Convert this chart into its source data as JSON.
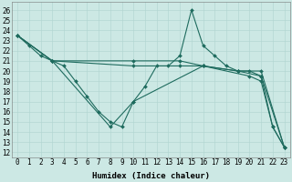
{
  "xlabel": "Humidex (Indice chaleur)",
  "xlim": [
    -0.5,
    23.5
  ],
  "ylim": [
    11.5,
    26.8
  ],
  "yticks": [
    12,
    13,
    14,
    15,
    16,
    17,
    18,
    19,
    20,
    21,
    22,
    23,
    24,
    25,
    26
  ],
  "xticks": [
    0,
    1,
    2,
    3,
    4,
    5,
    6,
    7,
    8,
    9,
    10,
    11,
    12,
    13,
    14,
    15,
    16,
    17,
    18,
    19,
    20,
    21,
    22,
    23
  ],
  "background_color": "#cce8e4",
  "line_color": "#1e6b5e",
  "grid_color": "#afd4cf",
  "tick_fontsize": 5.5,
  "xlabel_fontsize": 6.5,
  "lines": [
    {
      "x": [
        0,
        1,
        2,
        3,
        4,
        5,
        6,
        7,
        8,
        9,
        10,
        11,
        12,
        13,
        14,
        15,
        16,
        17,
        18,
        19,
        20,
        21,
        22,
        23
      ],
      "y": [
        23.5,
        22.5,
        21.5,
        21.0,
        20.5,
        19.0,
        17.5,
        16.0,
        15.0,
        14.5,
        17.0,
        18.5,
        20.5,
        20.5,
        21.5,
        26.0,
        22.5,
        21.5,
        20.5,
        20.0,
        20.0,
        19.5,
        14.5,
        12.5
      ]
    },
    {
      "x": [
        0,
        3,
        10,
        14,
        16,
        19,
        21,
        23
      ],
      "y": [
        23.5,
        21.0,
        21.0,
        21.0,
        20.5,
        20.0,
        20.0,
        12.5
      ]
    },
    {
      "x": [
        0,
        3,
        10,
        14,
        16,
        19,
        21,
        23
      ],
      "y": [
        23.5,
        21.0,
        20.5,
        20.5,
        20.5,
        20.0,
        19.5,
        12.5
      ]
    },
    {
      "x": [
        0,
        3,
        8,
        10,
        16,
        20,
        21,
        22,
        23
      ],
      "y": [
        23.5,
        21.0,
        14.5,
        17.0,
        20.5,
        19.5,
        19.0,
        14.5,
        12.5
      ]
    }
  ]
}
